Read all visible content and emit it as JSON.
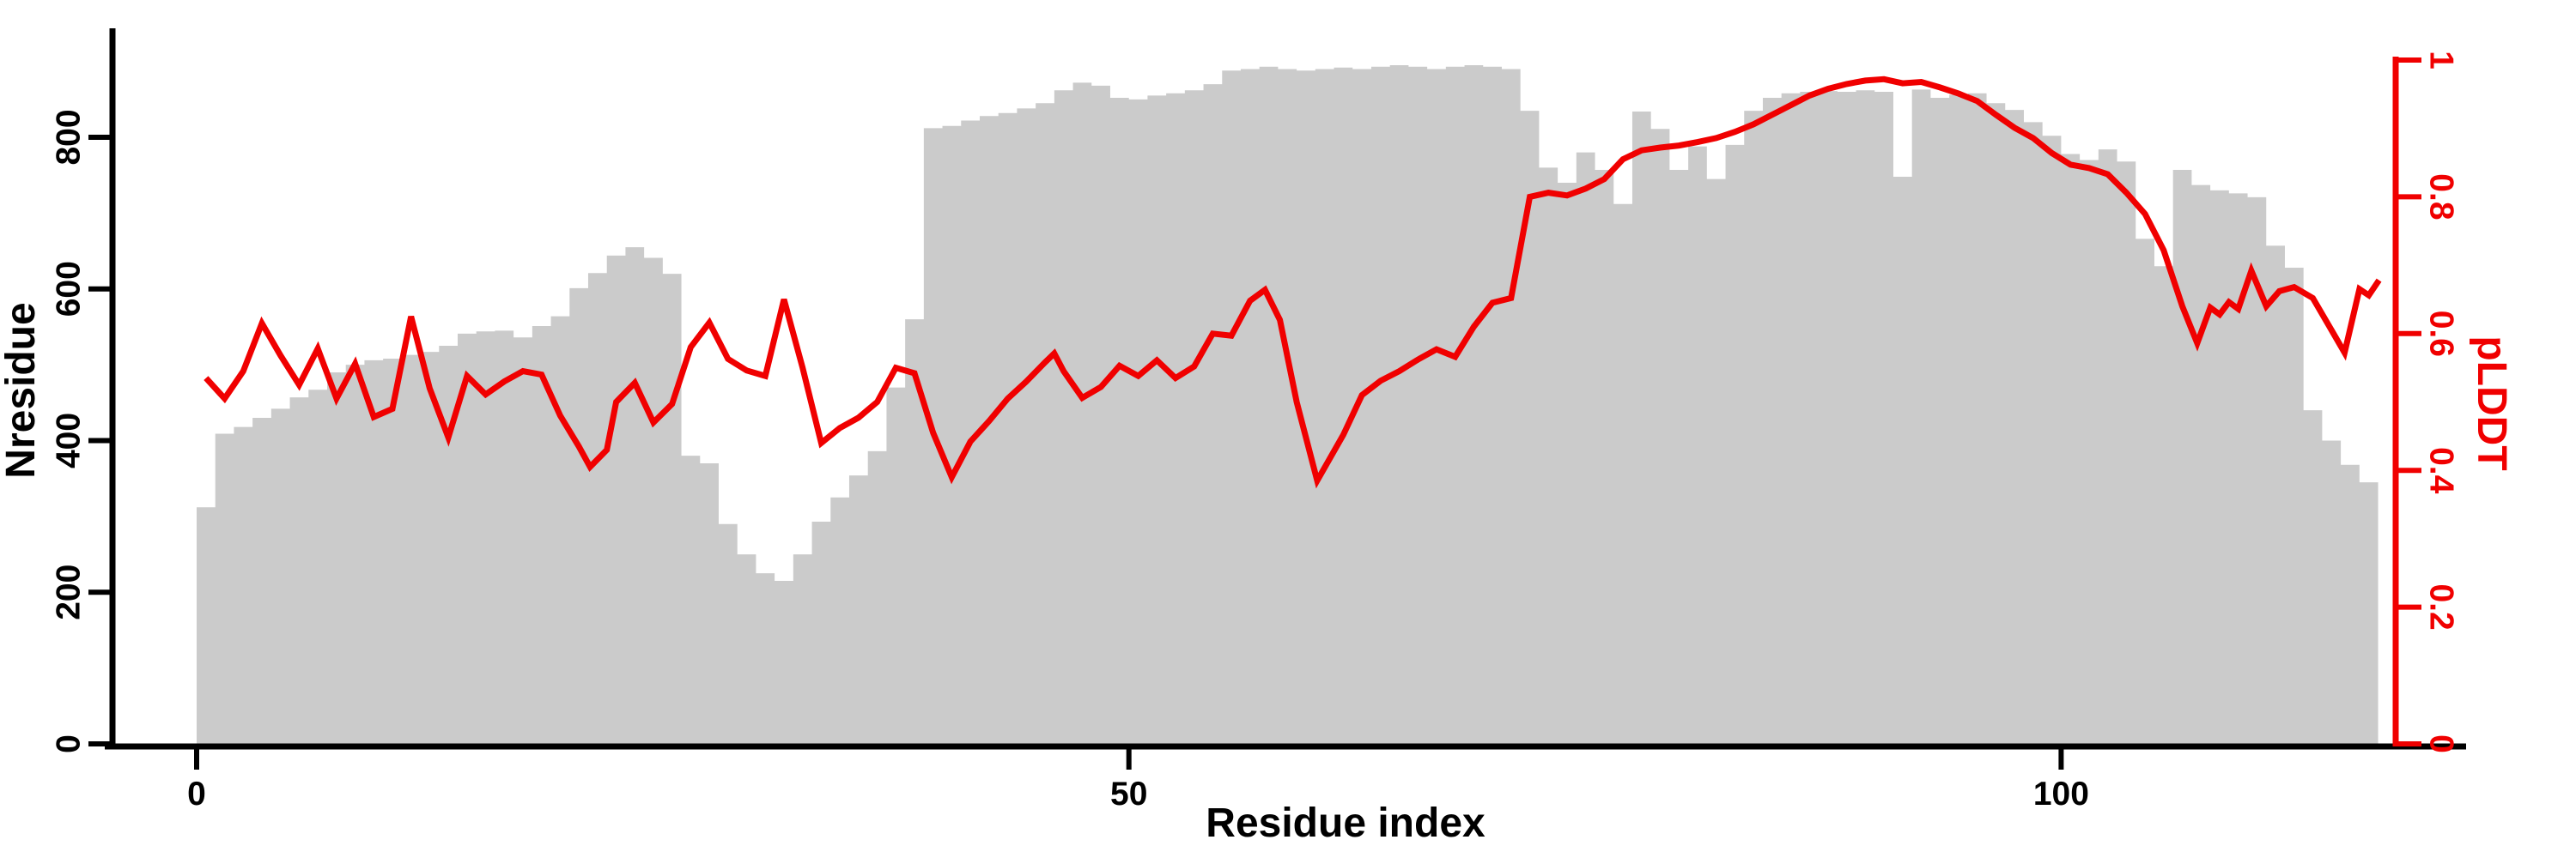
{
  "chart_data": {
    "type": "composite",
    "title": "",
    "xlabel": "Residue index",
    "ylabel_left": "Nresidue",
    "ylabel_right": "pLDDT",
    "x_ticks": [
      0,
      50,
      100
    ],
    "left_ticks": [
      0,
      200,
      400,
      600,
      800
    ],
    "right_ticks": [
      "0",
      "0.2",
      "0.4",
      "0.6",
      "0.8",
      "1"
    ],
    "right_tick_values": [
      0,
      0.2,
      0.4,
      0.6,
      0.8,
      1
    ],
    "xlim": [
      0,
      117
    ],
    "ylim_left": [
      0,
      905
    ],
    "ylim_right": [
      0,
      1
    ],
    "grid": false,
    "legend_position": "none",
    "colors": {
      "bars": "#cbcbcb",
      "line": "#f00000",
      "axis": "#000000"
    },
    "series": [
      {
        "name": "Nresidue",
        "type": "bar",
        "color": "#cbcbcb",
        "values": [
          312,
          409,
          418,
          430,
          442,
          457,
          467,
          490,
          500,
          506,
          508,
          513,
          517,
          525,
          541,
          544,
          545,
          536,
          551,
          564,
          601,
          621,
          644,
          655,
          641,
          620,
          380,
          370,
          290,
          250,
          225,
          215,
          250,
          293,
          325,
          354,
          386,
          470,
          560,
          812,
          815,
          822,
          828,
          832,
          838,
          845,
          862,
          872,
          868,
          852,
          850,
          855,
          858,
          862,
          870,
          888,
          890,
          893,
          890,
          888,
          890,
          892,
          890,
          893,
          895,
          893,
          890,
          893,
          895,
          893,
          890,
          835,
          760,
          740,
          780,
          757,
          712,
          834,
          811,
          757,
          788,
          745,
          790,
          835,
          852,
          858,
          860,
          861,
          860,
          862,
          860,
          748,
          863,
          852,
          856,
          858,
          845,
          836,
          820,
          802,
          778,
          770,
          784,
          768,
          666,
          630,
          757,
          737,
          730,
          726,
          721,
          657,
          628,
          440,
          400,
          368,
          345
        ]
      },
      {
        "name": "pLDDT",
        "type": "line",
        "color": "#f00000",
        "points": [
          [
            0,
            0.535
          ],
          [
            1,
            0.505
          ],
          [
            2,
            0.545
          ],
          [
            3,
            0.615
          ],
          [
            4,
            0.568
          ],
          [
            5,
            0.525
          ],
          [
            6,
            0.578
          ],
          [
            7,
            0.505
          ],
          [
            8,
            0.556
          ],
          [
            9,
            0.478
          ],
          [
            10,
            0.49
          ],
          [
            11,
            0.625
          ],
          [
            12,
            0.52
          ],
          [
            13,
            0.448
          ],
          [
            14,
            0.538
          ],
          [
            15,
            0.511
          ],
          [
            16,
            0.53
          ],
          [
            17,
            0.545
          ],
          [
            18,
            0.54
          ],
          [
            19,
            0.48
          ],
          [
            20,
            0.435
          ],
          [
            20.6,
            0.405
          ],
          [
            21.5,
            0.43
          ],
          [
            22,
            0.5
          ],
          [
            23,
            0.528
          ],
          [
            24,
            0.47
          ],
          [
            25,
            0.497
          ],
          [
            26,
            0.58
          ],
          [
            27,
            0.616
          ],
          [
            28,
            0.563
          ],
          [
            29,
            0.546
          ],
          [
            30,
            0.538
          ],
          [
            31,
            0.65
          ],
          [
            32,
            0.55
          ],
          [
            33,
            0.44
          ],
          [
            34,
            0.462
          ],
          [
            35,
            0.477
          ],
          [
            36,
            0.5
          ],
          [
            37,
            0.55
          ],
          [
            38,
            0.542
          ],
          [
            39,
            0.455
          ],
          [
            40,
            0.39
          ],
          [
            41,
            0.442
          ],
          [
            42,
            0.472
          ],
          [
            43,
            0.505
          ],
          [
            44,
            0.53
          ],
          [
            45,
            0.558
          ],
          [
            45.5,
            0.571
          ],
          [
            46,
            0.545
          ],
          [
            47,
            0.506
          ],
          [
            48,
            0.522
          ],
          [
            49,
            0.553
          ],
          [
            50,
            0.538
          ],
          [
            51,
            0.561
          ],
          [
            52,
            0.535
          ],
          [
            53,
            0.552
          ],
          [
            54,
            0.6
          ],
          [
            55,
            0.597
          ],
          [
            56,
            0.648
          ],
          [
            56.8,
            0.664
          ],
          [
            57.6,
            0.62
          ],
          [
            58.5,
            0.5
          ],
          [
            59.6,
            0.385
          ],
          [
            61,
            0.452
          ],
          [
            62,
            0.51
          ],
          [
            63,
            0.531
          ],
          [
            64,
            0.545
          ],
          [
            65,
            0.562
          ],
          [
            66,
            0.577
          ],
          [
            67,
            0.566
          ],
          [
            68,
            0.61
          ],
          [
            69,
            0.645
          ],
          [
            70,
            0.652
          ],
          [
            71,
            0.8
          ],
          [
            72,
            0.806
          ],
          [
            73,
            0.802
          ],
          [
            74,
            0.812
          ],
          [
            75,
            0.826
          ],
          [
            76,
            0.855
          ],
          [
            77,
            0.868
          ],
          [
            78,
            0.872
          ],
          [
            79,
            0.875
          ],
          [
            80,
            0.88
          ],
          [
            81,
            0.886
          ],
          [
            82,
            0.895
          ],
          [
            83,
            0.906
          ],
          [
            84,
            0.92
          ],
          [
            85,
            0.934
          ],
          [
            86,
            0.948
          ],
          [
            87,
            0.958
          ],
          [
            88,
            0.965
          ],
          [
            89,
            0.97
          ],
          [
            90,
            0.972
          ],
          [
            91,
            0.966
          ],
          [
            92,
            0.968
          ],
          [
            93,
            0.96
          ],
          [
            94,
            0.951
          ],
          [
            95,
            0.94
          ],
          [
            96,
            0.92
          ],
          [
            97,
            0.901
          ],
          [
            98,
            0.886
          ],
          [
            99,
            0.864
          ],
          [
            100,
            0.847
          ],
          [
            101,
            0.842
          ],
          [
            102,
            0.833
          ],
          [
            103,
            0.806
          ],
          [
            104,
            0.775
          ],
          [
            105,
            0.722
          ],
          [
            106,
            0.64
          ],
          [
            106.8,
            0.586
          ],
          [
            107.5,
            0.638
          ],
          [
            108,
            0.628
          ],
          [
            108.5,
            0.646
          ],
          [
            109,
            0.636
          ],
          [
            109.7,
            0.692
          ],
          [
            110.5,
            0.64
          ],
          [
            111.2,
            0.662
          ],
          [
            112,
            0.668
          ],
          [
            113,
            0.652
          ],
          [
            114,
            0.605
          ],
          [
            114.7,
            0.572
          ],
          [
            115.5,
            0.665
          ],
          [
            116,
            0.656
          ],
          [
            116.55,
            0.678
          ]
        ]
      }
    ],
    "right_axis_bottom_label": "0"
  }
}
